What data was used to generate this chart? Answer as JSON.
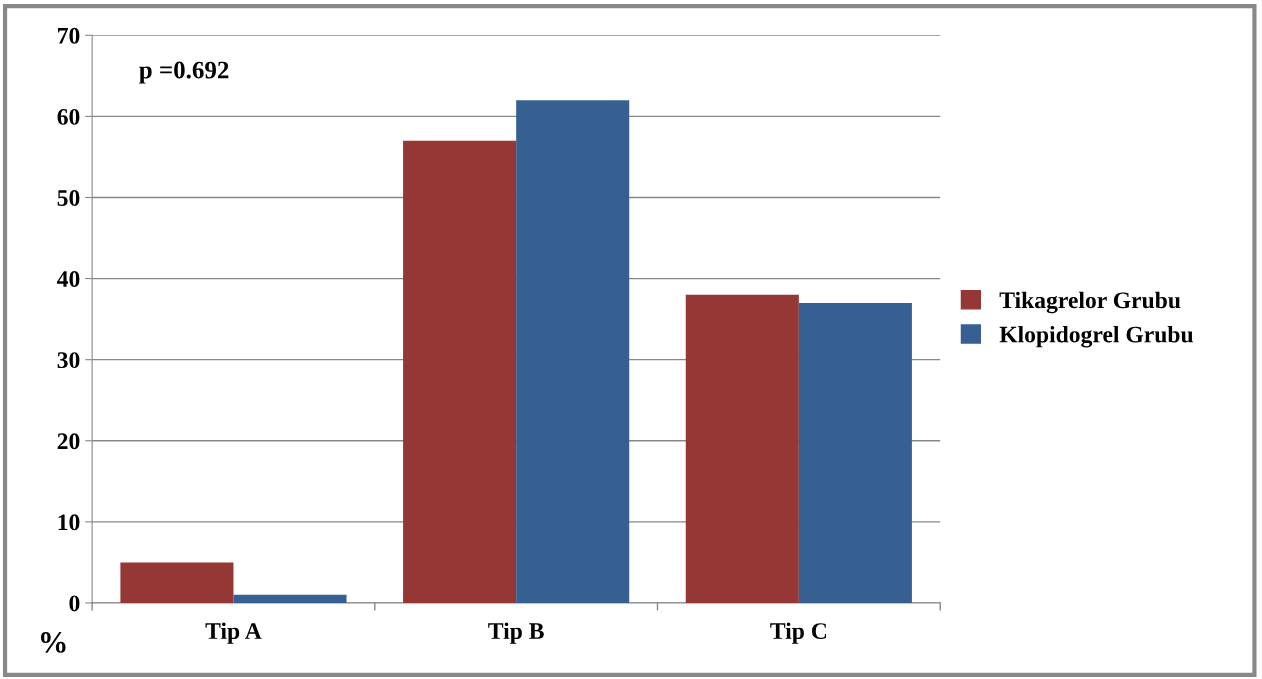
{
  "chart_data": {
    "type": "bar",
    "ylabel": "%",
    "annotations": [
      "p =0.692"
    ],
    "categories": [
      "Tip A",
      "Tip B",
      "Tip C"
    ],
    "series": [
      {
        "name": "Tikagrelor Grubu",
        "color": "#953735",
        "values": [
          5,
          57,
          38
        ]
      },
      {
        "name": "Klopidogrel Grubu",
        "color": "#376092",
        "values": [
          1,
          62,
          37
        ]
      }
    ],
    "ylim": [
      0,
      70
    ],
    "yticks": [
      0,
      10,
      20,
      30,
      40,
      50,
      60,
      70
    ],
    "grid": "y",
    "legend": "right"
  }
}
